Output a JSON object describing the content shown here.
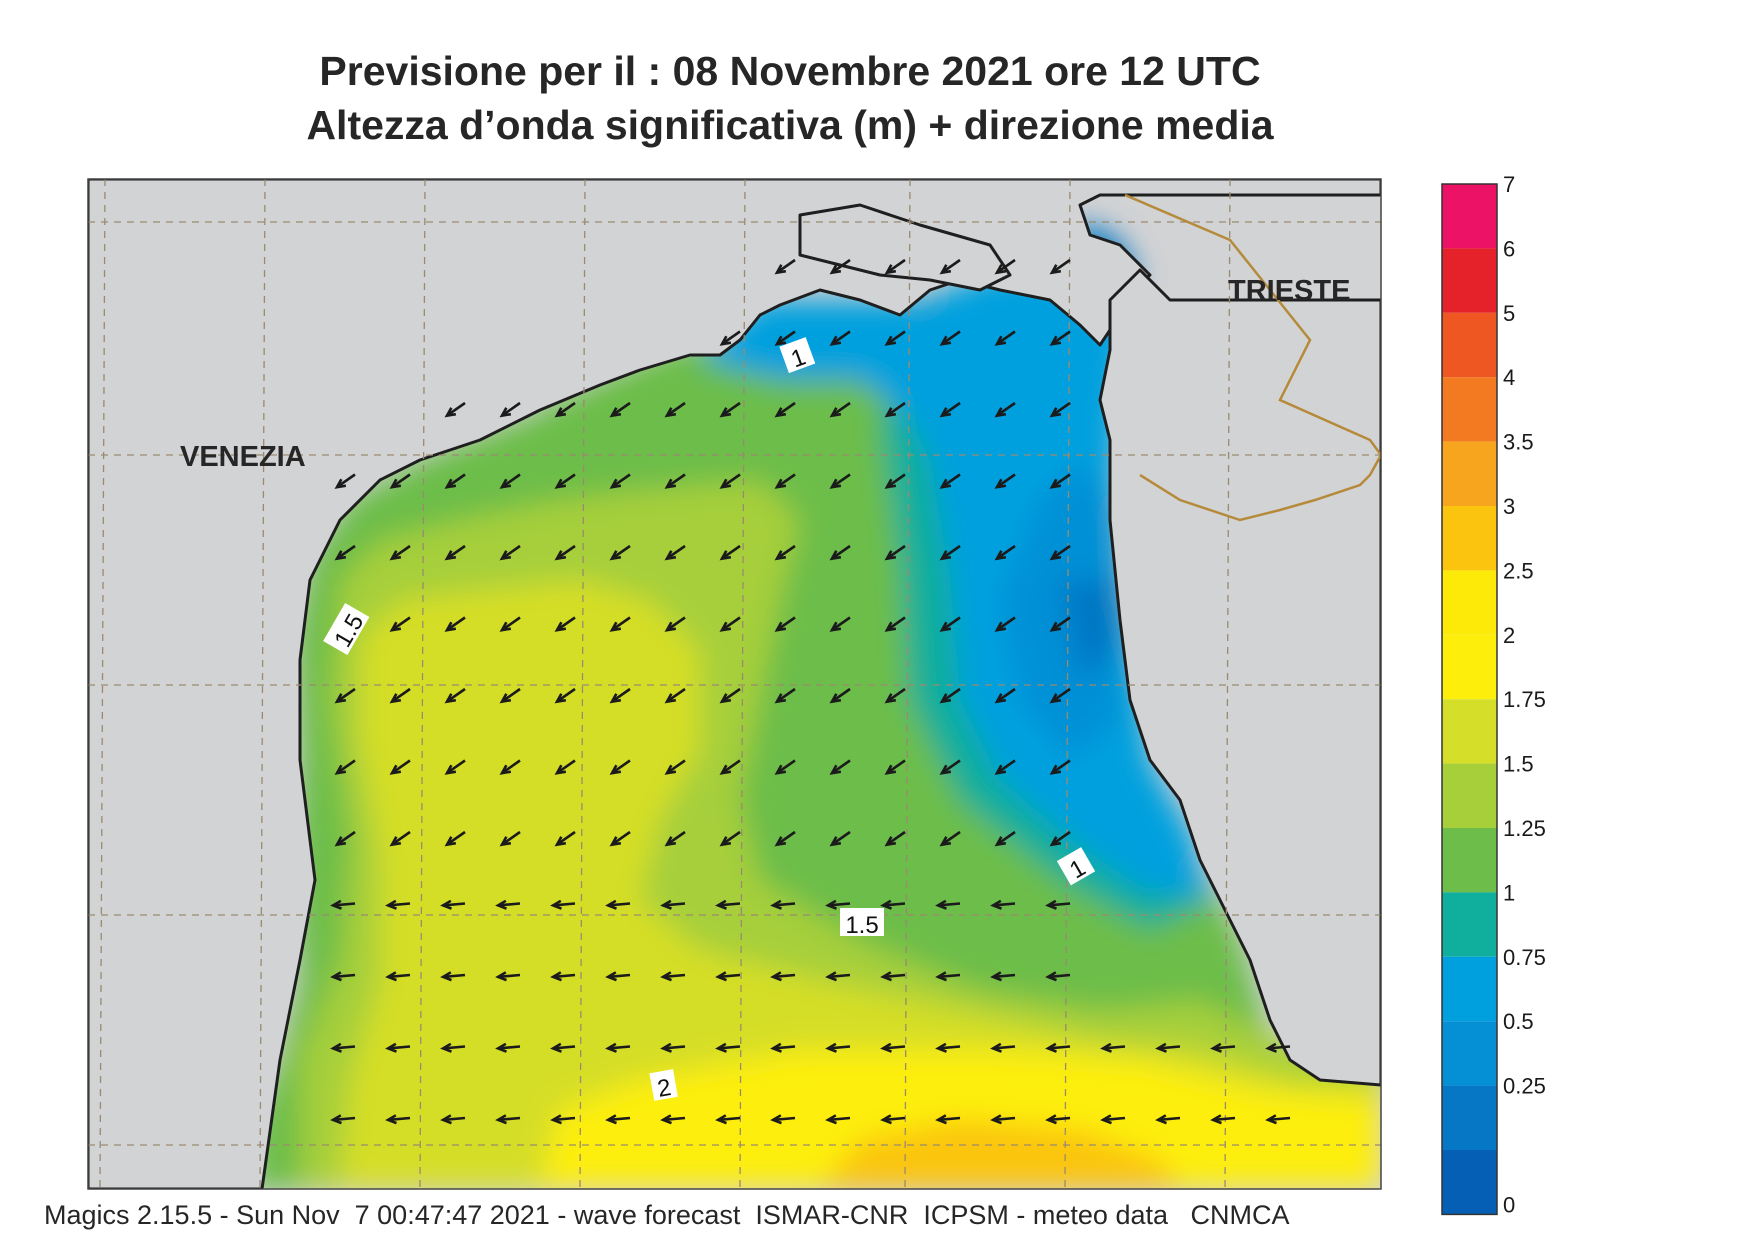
{
  "title": {
    "line1": "Previsione per il  :  08 Novembre  2021   ore 12 UTC",
    "line2": "Altezza d’onda significativa (m) + direzione media"
  },
  "cities": {
    "venezia": "VENEZIA",
    "trieste": "TRIESTE"
  },
  "contour_labels": {
    "a": "1",
    "b": "1.5",
    "c": "1",
    "d": "1.5",
    "e": "2"
  },
  "colorbar": {
    "labels": [
      "7",
      "6",
      "5",
      "4",
      "3.5",
      "3",
      "2.5",
      "2",
      "1.75",
      "1.5",
      "1.25",
      "1",
      "0.75",
      "0.5",
      "0.25",
      "0"
    ],
    "colors": [
      "#ec1265",
      "#e5212a",
      "#ee5622",
      "#f47a22",
      "#f7a51e",
      "#fbc50f",
      "#fdea08",
      "#fdee0c",
      "#d5de28",
      "#a6cf3a",
      "#6cbd4a",
      "#10ae9c",
      "#00a0de",
      "#0590d6",
      "#0677c4",
      "#0560b5"
    ]
  },
  "land_color": "#d2d3d5",
  "footer": "Magics 2.15.5 - Sun Nov  7 00:47:47 2021 - wave forecast  ISMAR-CNR  ICPSM - meteo data   CNMCA"
}
